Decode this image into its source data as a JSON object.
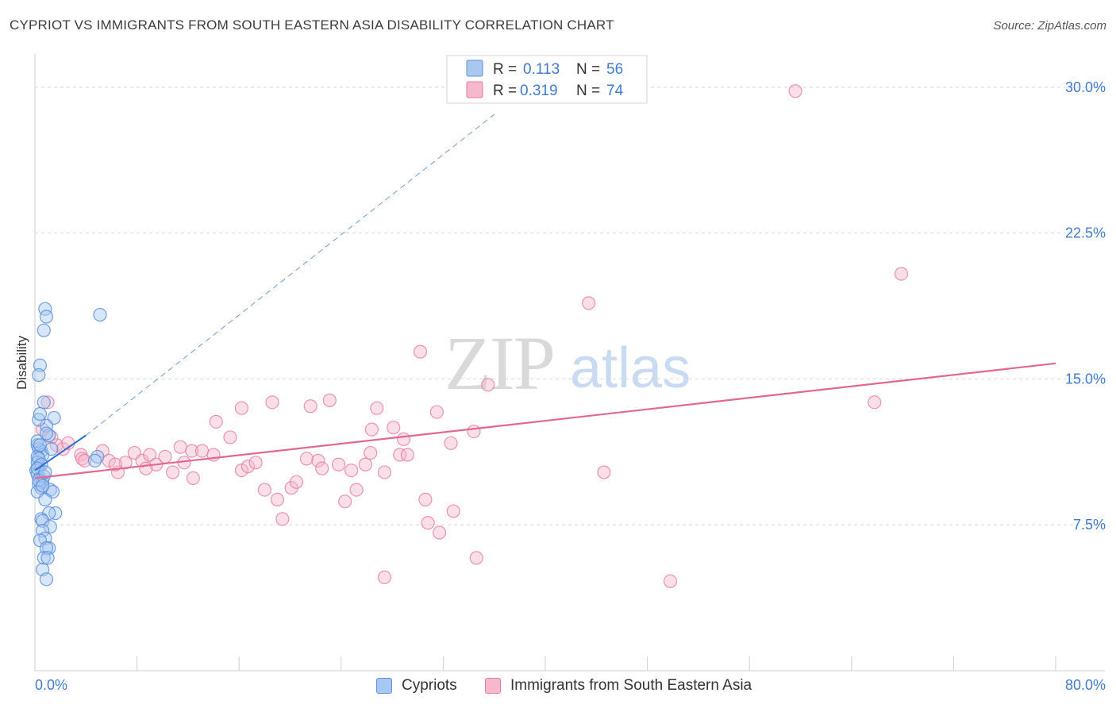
{
  "header": {
    "title": "CYPRIOT VS IMMIGRANTS FROM SOUTH EASTERN ASIA DISABILITY CORRELATION CHART",
    "source": "Source: ZipAtlas.com"
  },
  "watermark": {
    "zip": "ZIP",
    "atlas": "atlas"
  },
  "colors": {
    "blue": "#5b8fd9",
    "blue_fill": "#a9c8f1",
    "blue_line": "#2f6fcf",
    "pink": "#e87aa0",
    "pink_fill": "#f5b8cc",
    "pink_line": "#e2688f",
    "axis_label": "#3f7bd0",
    "grid": "#d8d8d8"
  },
  "legend_top": {
    "rows": [
      {
        "r_label": "R =",
        "r_value": "0.113",
        "n_label": "N =",
        "n_value": "56"
      },
      {
        "r_label": "R =",
        "r_value": "0.319",
        "n_label": "N =",
        "n_value": "74"
      }
    ]
  },
  "legend_bottom": {
    "items": [
      "Cypriots",
      "Immigrants from South Eastern Asia"
    ]
  },
  "chart_data": {
    "type": "scatter",
    "title": "CYPRIOT VS IMMIGRANTS FROM SOUTH EASTERN ASIA DISABILITY CORRELATION CHART",
    "xlabel": "",
    "ylabel": "Disability",
    "xlim": [
      0,
      80
    ],
    "ylim": [
      0,
      31.3
    ],
    "x_tick_labels": [
      "0.0%",
      "80.0%"
    ],
    "y_ticks": [
      {
        "value": 7.5,
        "label": "7.5%"
      },
      {
        "value": 15.0,
        "label": "15.0%"
      },
      {
        "value": 22.5,
        "label": "22.5%"
      },
      {
        "value": 30.0,
        "label": "30.0%"
      }
    ],
    "series": [
      {
        "name": "Cypriots",
        "R": 0.113,
        "N": 56,
        "trend_solid": [
          [
            0,
            10.3
          ],
          [
            4,
            12.1
          ]
        ],
        "trend_dashed": [
          [
            4,
            12.1
          ],
          [
            36,
            28.6
          ]
        ],
        "points": [
          [
            0.8,
            18.6
          ],
          [
            0.9,
            18.2
          ],
          [
            0.7,
            17.5
          ],
          [
            5.1,
            18.3
          ],
          [
            0.4,
            15.7
          ],
          [
            0.3,
            15.2
          ],
          [
            0.7,
            13.8
          ],
          [
            1.5,
            13.0
          ],
          [
            0.9,
            12.6
          ],
          [
            0.3,
            12.9
          ],
          [
            1.1,
            12.1
          ],
          [
            0.2,
            11.6
          ],
          [
            0.3,
            11.4
          ],
          [
            0.5,
            11.3
          ],
          [
            0.6,
            11.1
          ],
          [
            0.2,
            11.0
          ],
          [
            4.9,
            11.0
          ],
          [
            4.7,
            10.8
          ],
          [
            0.2,
            10.7
          ],
          [
            0.3,
            10.5
          ],
          [
            0.1,
            10.3
          ],
          [
            0.2,
            10.1
          ],
          [
            0.4,
            9.9
          ],
          [
            0.6,
            9.7
          ],
          [
            0.3,
            9.6
          ],
          [
            0.5,
            9.4
          ],
          [
            1.2,
            9.3
          ],
          [
            1.4,
            9.2
          ],
          [
            0.2,
            9.2
          ],
          [
            0.8,
            8.8
          ],
          [
            1.6,
            8.1
          ],
          [
            1.1,
            8.1
          ],
          [
            0.5,
            7.8
          ],
          [
            0.6,
            7.7
          ],
          [
            1.2,
            7.4
          ],
          [
            0.6,
            7.2
          ],
          [
            0.8,
            6.8
          ],
          [
            0.4,
            6.7
          ],
          [
            1.1,
            6.3
          ],
          [
            0.9,
            6.3
          ],
          [
            0.7,
            5.8
          ],
          [
            1.0,
            5.8
          ],
          [
            0.6,
            5.2
          ],
          [
            0.9,
            4.7
          ],
          [
            0.2,
            11.8
          ],
          [
            0.4,
            11.6
          ],
          [
            0.3,
            10.9
          ],
          [
            0.5,
            10.6
          ],
          [
            0.2,
            10.4
          ],
          [
            0.7,
            10.0
          ],
          [
            0.3,
            9.8
          ],
          [
            0.6,
            9.5
          ],
          [
            0.9,
            12.2
          ],
          [
            0.4,
            13.2
          ],
          [
            1.3,
            11.4
          ],
          [
            0.8,
            10.2
          ]
        ]
      },
      {
        "name": "Immigrants from South Eastern Asia",
        "R": 0.319,
        "N": 74,
        "trend_solid": [
          [
            0,
            9.9
          ],
          [
            80,
            15.8
          ]
        ],
        "points": [
          [
            59.6,
            29.8
          ],
          [
            67.9,
            20.4
          ],
          [
            43.4,
            18.9
          ],
          [
            30.2,
            16.4
          ],
          [
            35.5,
            14.7
          ],
          [
            65.8,
            13.8
          ],
          [
            16.2,
            13.5
          ],
          [
            18.6,
            13.8
          ],
          [
            21.6,
            13.6
          ],
          [
            23.1,
            13.9
          ],
          [
            26.8,
            13.5
          ],
          [
            31.5,
            13.3
          ],
          [
            14.2,
            12.8
          ],
          [
            26.4,
            12.4
          ],
          [
            28.1,
            12.5
          ],
          [
            34.4,
            12.3
          ],
          [
            15.3,
            12.0
          ],
          [
            28.9,
            11.9
          ],
          [
            32.6,
            11.7
          ],
          [
            11.4,
            11.5
          ],
          [
            12.3,
            11.3
          ],
          [
            1.0,
            13.8
          ],
          [
            0.6,
            12.4
          ],
          [
            1.7,
            11.6
          ],
          [
            2.2,
            11.4
          ],
          [
            3.6,
            11.1
          ],
          [
            3.7,
            10.9
          ],
          [
            3.9,
            10.8
          ],
          [
            5.3,
            11.3
          ],
          [
            5.8,
            10.8
          ],
          [
            6.5,
            10.2
          ],
          [
            7.1,
            10.7
          ],
          [
            7.8,
            11.2
          ],
          [
            8.4,
            10.8
          ],
          [
            9.0,
            11.1
          ],
          [
            9.5,
            10.6
          ],
          [
            10.2,
            11.0
          ],
          [
            10.8,
            10.2
          ],
          [
            11.7,
            10.7
          ],
          [
            12.4,
            9.9
          ],
          [
            13.1,
            11.3
          ],
          [
            14.0,
            11.1
          ],
          [
            16.2,
            10.3
          ],
          [
            16.7,
            10.5
          ],
          [
            17.3,
            10.7
          ],
          [
            18.0,
            9.3
          ],
          [
            19.0,
            8.8
          ],
          [
            19.4,
            7.8
          ],
          [
            20.1,
            9.4
          ],
          [
            20.5,
            9.7
          ],
          [
            21.3,
            10.9
          ],
          [
            22.2,
            10.8
          ],
          [
            22.5,
            10.4
          ],
          [
            23.8,
            10.6
          ],
          [
            24.3,
            8.7
          ],
          [
            24.8,
            10.3
          ],
          [
            25.2,
            9.3
          ],
          [
            25.9,
            10.6
          ],
          [
            26.3,
            11.2
          ],
          [
            27.4,
            10.2
          ],
          [
            28.6,
            11.1
          ],
          [
            29.2,
            11.1
          ],
          [
            30.6,
            8.8
          ],
          [
            30.8,
            7.6
          ],
          [
            31.7,
            7.1
          ],
          [
            32.8,
            8.2
          ],
          [
            34.6,
            5.8
          ],
          [
            27.4,
            4.8
          ],
          [
            44.6,
            10.2
          ],
          [
            49.8,
            4.6
          ],
          [
            1.3,
            12.0
          ],
          [
            2.6,
            11.7
          ],
          [
            6.3,
            10.6
          ],
          [
            8.7,
            10.4
          ]
        ]
      }
    ]
  }
}
